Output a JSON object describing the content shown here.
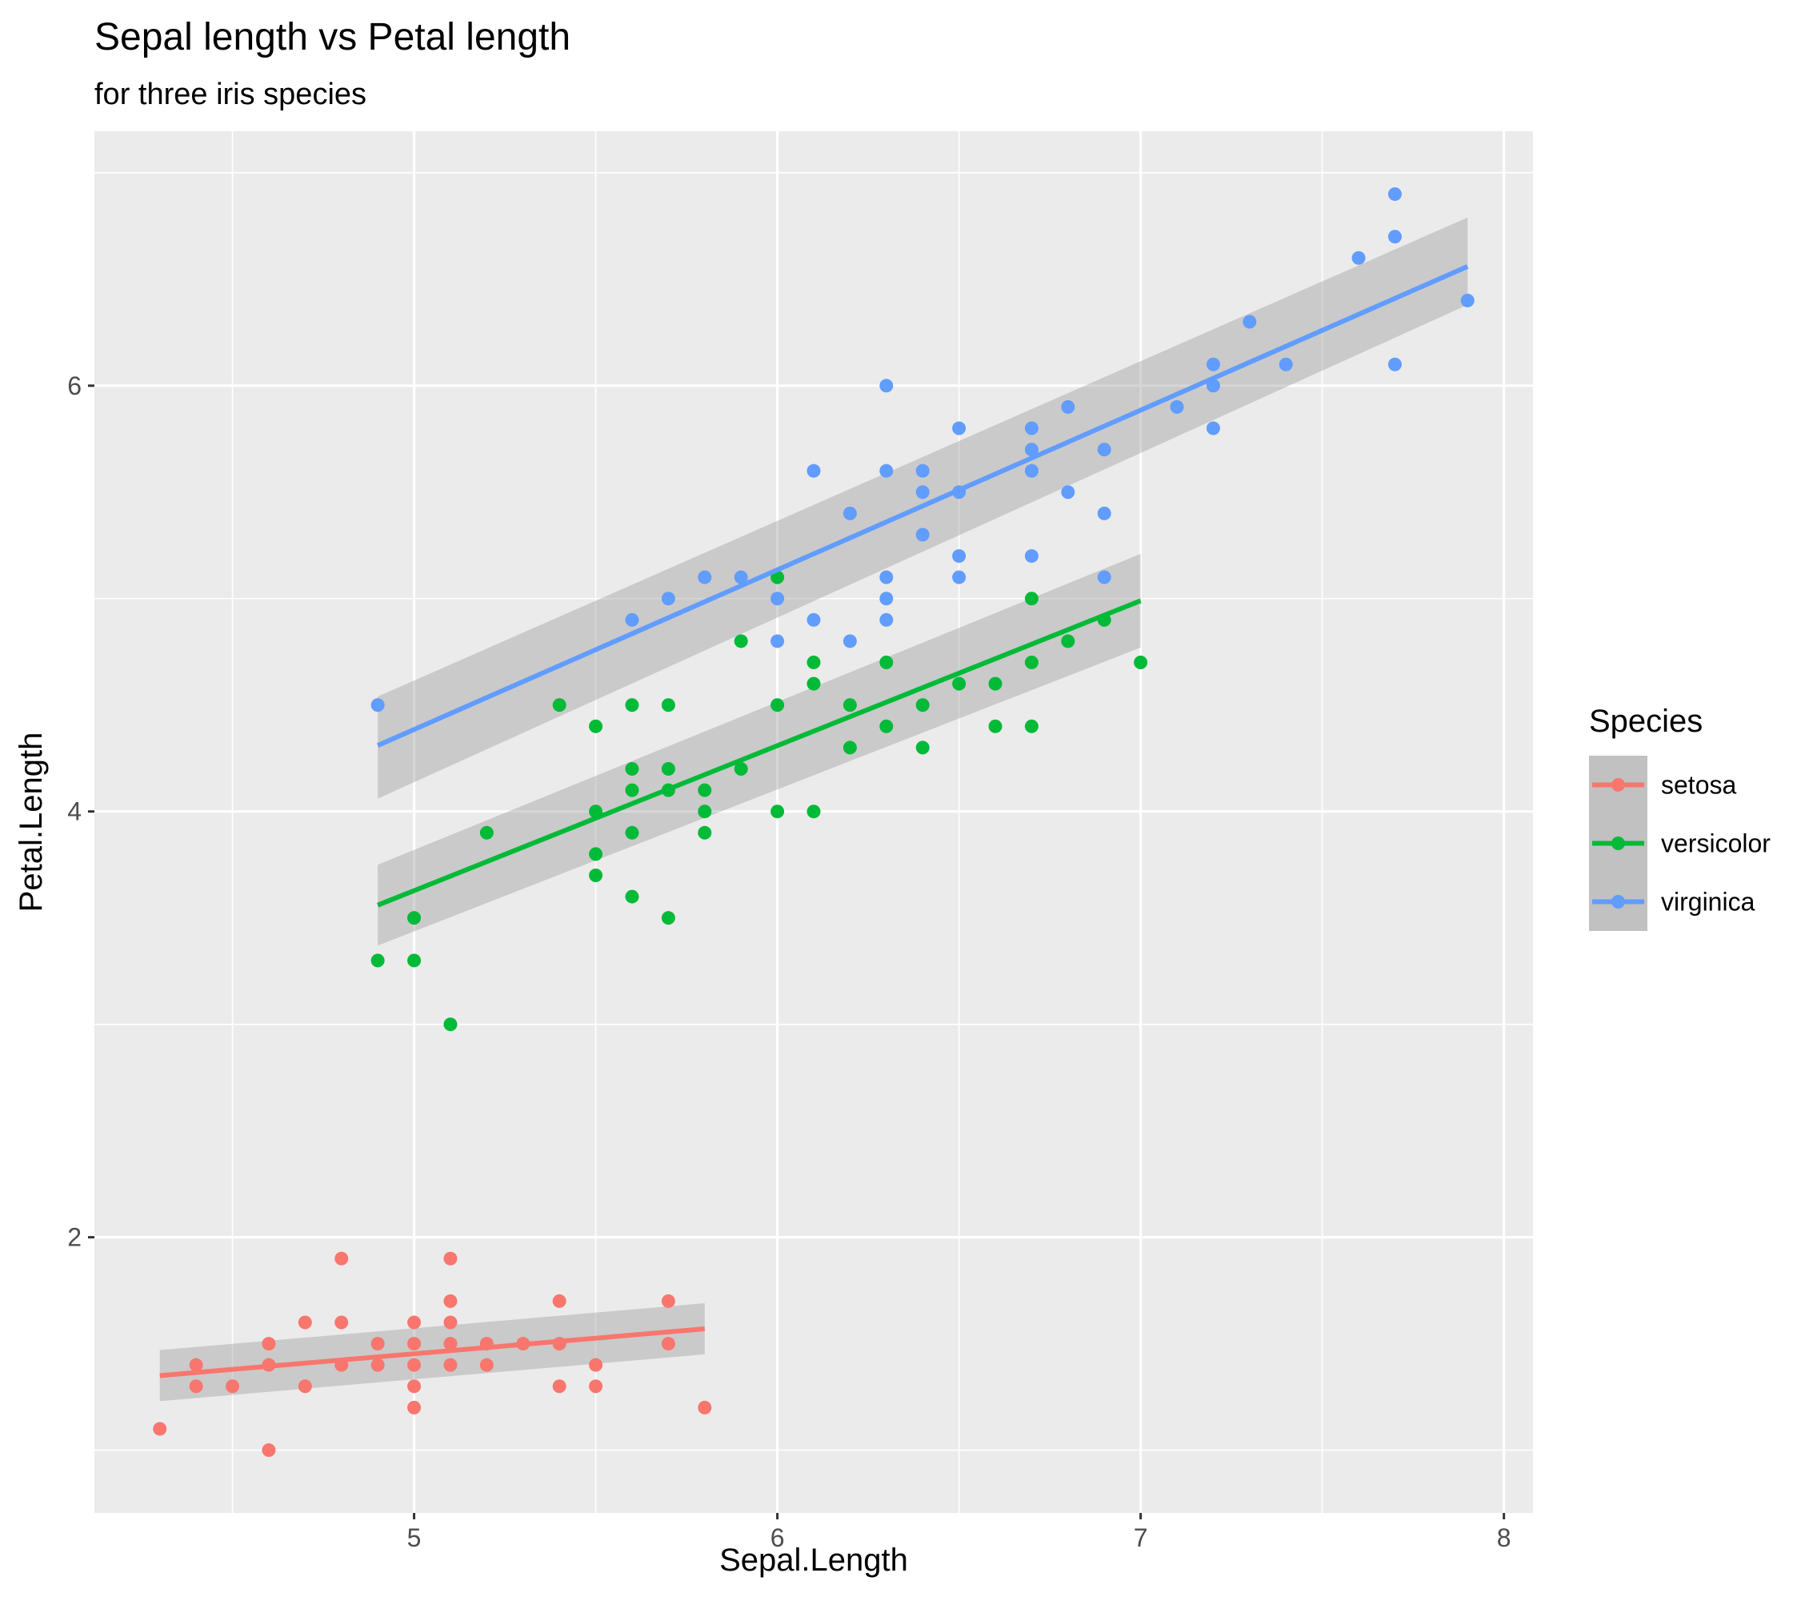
{
  "chart_data": {
    "type": "scatter",
    "title": "Sepal length vs Petal length",
    "subtitle": "for three iris species",
    "xlabel": "Sepal.Length",
    "ylabel": "Petal.Length",
    "xlim": [
      4.12,
      8.08
    ],
    "ylim": [
      0.705,
      7.195
    ],
    "x_ticks": [
      5,
      6,
      7,
      8
    ],
    "x_tick_labels": [
      "5",
      "6",
      "7",
      "8"
    ],
    "y_ticks": [
      2,
      4,
      6
    ],
    "y_tick_labels": [
      "2",
      "4",
      "6"
    ],
    "grid": true,
    "legend": {
      "title": "Species",
      "position": "right"
    },
    "series": [
      {
        "name": "setosa",
        "color": "#F8766D",
        "points": [
          [
            4.3,
            1.1
          ],
          [
            4.4,
            1.4
          ],
          [
            4.4,
            1.3
          ],
          [
            4.5,
            1.3
          ],
          [
            4.6,
            1.5
          ],
          [
            4.6,
            1.4
          ],
          [
            4.6,
            1.0
          ],
          [
            4.7,
            1.6
          ],
          [
            4.7,
            1.3
          ],
          [
            4.8,
            1.9
          ],
          [
            4.8,
            1.6
          ],
          [
            4.8,
            1.4
          ],
          [
            4.9,
            1.5
          ],
          [
            4.9,
            1.4
          ],
          [
            5.0,
            1.6
          ],
          [
            5.0,
            1.5
          ],
          [
            5.0,
            1.4
          ],
          [
            5.0,
            1.3
          ],
          [
            5.0,
            1.2
          ],
          [
            5.1,
            1.9
          ],
          [
            5.1,
            1.7
          ],
          [
            5.1,
            1.6
          ],
          [
            5.1,
            1.5
          ],
          [
            5.1,
            1.4
          ],
          [
            5.2,
            1.5
          ],
          [
            5.2,
            1.4
          ],
          [
            5.3,
            1.5
          ],
          [
            5.4,
            1.7
          ],
          [
            5.4,
            1.5
          ],
          [
            5.4,
            1.3
          ],
          [
            5.5,
            1.4
          ],
          [
            5.5,
            1.3
          ],
          [
            5.7,
            1.7
          ],
          [
            5.7,
            1.5
          ],
          [
            5.8,
            1.2
          ]
        ],
        "fit": {
          "x": [
            4.3,
            5.8
          ],
          "y": [
            1.35,
            1.57
          ]
        },
        "band": {
          "x": [
            4.3,
            5.8
          ],
          "lower": [
            1.23,
            1.45
          ],
          "upper": [
            1.47,
            1.69
          ]
        }
      },
      {
        "name": "versicolor",
        "color": "#00BA38",
        "points": [
          [
            4.9,
            3.3
          ],
          [
            5.0,
            3.5
          ],
          [
            5.0,
            3.3
          ],
          [
            5.1,
            3.0
          ],
          [
            5.2,
            3.9
          ],
          [
            5.4,
            4.5
          ],
          [
            5.5,
            4.4
          ],
          [
            5.5,
            4.0
          ],
          [
            5.5,
            3.8
          ],
          [
            5.5,
            3.7
          ],
          [
            5.6,
            4.5
          ],
          [
            5.6,
            4.2
          ],
          [
            5.6,
            4.1
          ],
          [
            5.6,
            3.9
          ],
          [
            5.6,
            3.6
          ],
          [
            5.7,
            4.5
          ],
          [
            5.7,
            4.2
          ],
          [
            5.7,
            4.1
          ],
          [
            5.7,
            3.5
          ],
          [
            5.8,
            4.1
          ],
          [
            5.8,
            4.0
          ],
          [
            5.8,
            3.9
          ],
          [
            5.9,
            4.8
          ],
          [
            5.9,
            4.2
          ],
          [
            6.0,
            5.1
          ],
          [
            6.0,
            4.5
          ],
          [
            6.0,
            4.0
          ],
          [
            6.1,
            4.7
          ],
          [
            6.1,
            4.6
          ],
          [
            6.1,
            4.0
          ],
          [
            6.2,
            4.5
          ],
          [
            6.2,
            4.3
          ],
          [
            6.3,
            4.7
          ],
          [
            6.3,
            4.4
          ],
          [
            6.4,
            4.5
          ],
          [
            6.4,
            4.3
          ],
          [
            6.5,
            4.6
          ],
          [
            6.6,
            4.6
          ],
          [
            6.6,
            4.4
          ],
          [
            6.7,
            5.0
          ],
          [
            6.7,
            4.7
          ],
          [
            6.7,
            4.4
          ],
          [
            6.8,
            4.8
          ],
          [
            6.9,
            4.9
          ],
          [
            7.0,
            4.7
          ]
        ],
        "fit": {
          "x": [
            4.9,
            7.0
          ],
          "y": [
            3.56,
            4.99
          ]
        },
        "band": {
          "x": [
            4.9,
            7.0
          ],
          "lower": [
            3.37,
            4.77
          ],
          "upper": [
            3.75,
            5.21
          ]
        }
      },
      {
        "name": "virginica",
        "color": "#619CFF",
        "points": [
          [
            4.9,
            4.5
          ],
          [
            5.6,
            4.9
          ],
          [
            5.7,
            5.0
          ],
          [
            5.8,
            5.1
          ],
          [
            5.9,
            5.1
          ],
          [
            6.0,
            5.0
          ],
          [
            6.0,
            4.8
          ],
          [
            6.1,
            5.6
          ],
          [
            6.1,
            4.9
          ],
          [
            6.2,
            5.4
          ],
          [
            6.2,
            4.8
          ],
          [
            6.3,
            6.0
          ],
          [
            6.3,
            5.6
          ],
          [
            6.3,
            5.1
          ],
          [
            6.3,
            5.0
          ],
          [
            6.3,
            4.9
          ],
          [
            6.4,
            5.6
          ],
          [
            6.4,
            5.5
          ],
          [
            6.4,
            5.3
          ],
          [
            6.5,
            5.8
          ],
          [
            6.5,
            5.5
          ],
          [
            6.5,
            5.2
          ],
          [
            6.5,
            5.1
          ],
          [
            6.7,
            5.8
          ],
          [
            6.7,
            5.7
          ],
          [
            6.7,
            5.6
          ],
          [
            6.7,
            5.2
          ],
          [
            6.8,
            5.9
          ],
          [
            6.8,
            5.5
          ],
          [
            6.9,
            5.7
          ],
          [
            6.9,
            5.4
          ],
          [
            6.9,
            5.1
          ],
          [
            7.1,
            5.9
          ],
          [
            7.2,
            6.1
          ],
          [
            7.2,
            6.0
          ],
          [
            7.2,
            5.8
          ],
          [
            7.3,
            6.3
          ],
          [
            7.4,
            6.1
          ],
          [
            7.6,
            6.6
          ],
          [
            7.7,
            6.9
          ],
          [
            7.7,
            6.7
          ],
          [
            7.7,
            6.1
          ],
          [
            7.9,
            6.4
          ]
        ],
        "fit": {
          "x": [
            4.9,
            7.9
          ],
          "y": [
            4.31,
            6.56
          ]
        },
        "band": {
          "x": [
            4.9,
            7.9
          ],
          "lower": [
            4.06,
            6.38
          ],
          "upper": [
            4.54,
            6.79
          ]
        }
      }
    ]
  }
}
